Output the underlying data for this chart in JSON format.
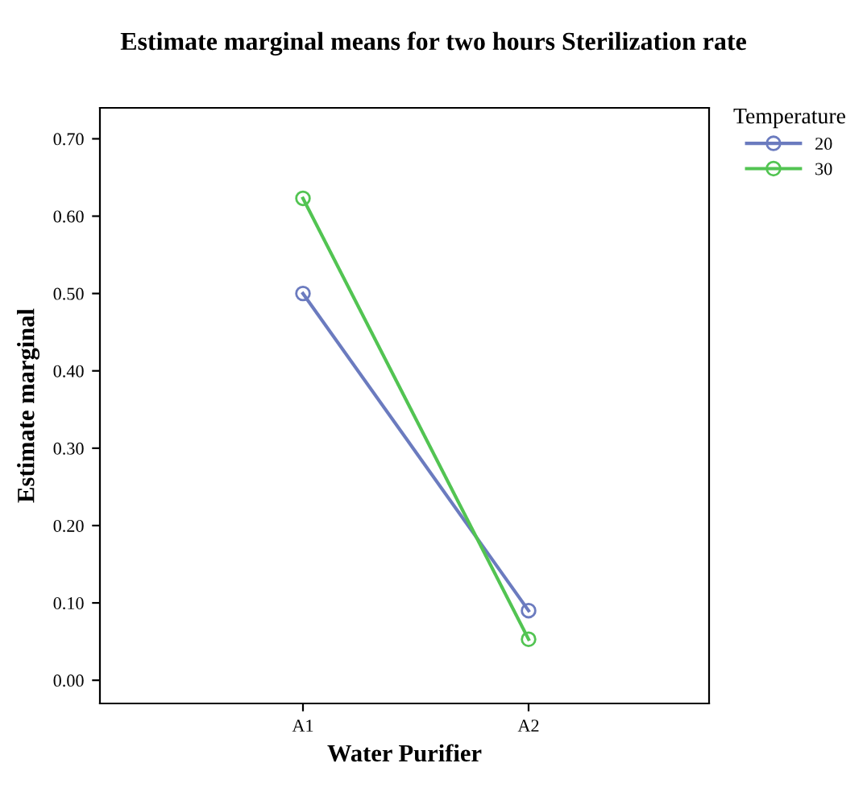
{
  "chart_data": {
    "type": "line",
    "title": "Estimate marginal means for two hours Sterilization rate",
    "xlabel": "Water Purifier",
    "ylabel": "Estimate marginal",
    "legend_title": "Temperature",
    "categories": [
      "A1",
      "A2"
    ],
    "series": [
      {
        "name": "20",
        "color": "#6b7bbf",
        "values": [
          0.5,
          0.09
        ]
      },
      {
        "name": "30",
        "color": "#52c452",
        "values": [
          0.623,
          0.053
        ]
      }
    ],
    "ylim": [
      -0.03,
      0.74
    ],
    "yticks": [
      {
        "value": 0,
        "label": "0.00"
      },
      {
        "value": 0.1,
        "label": "0.10"
      },
      {
        "value": 0.2,
        "label": "0.20"
      },
      {
        "value": 0.3,
        "label": "0.30"
      },
      {
        "value": 0.4,
        "label": "0.40"
      },
      {
        "value": 0.5,
        "label": "0.50"
      },
      {
        "value": 0.6,
        "label": "0.60"
      },
      {
        "value": 0.7,
        "label": "0.70"
      }
    ],
    "marker": "circle",
    "line_style": "solid",
    "grid": false,
    "legend": "top right"
  }
}
